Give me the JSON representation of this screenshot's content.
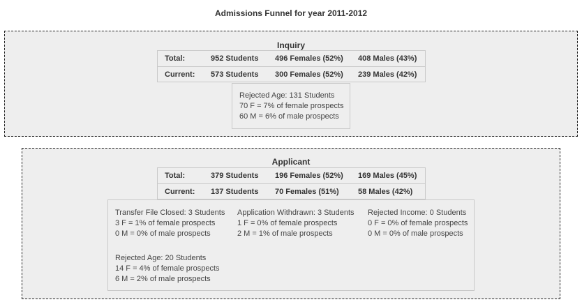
{
  "page_title": "Admissions Funnel for year 2011-2012",
  "inquiry": {
    "title": "Inquiry",
    "total": {
      "label": "Total:",
      "students": "952 Students",
      "females": "496 Females (52%)",
      "males": "408 Males (43%)"
    },
    "current": {
      "label": "Current:",
      "students": "573 Students",
      "females": "300 Females (52%)",
      "males": "239 Males (42%)"
    },
    "details": [
      {
        "heading": "Rejected Age: 131 Students",
        "female_line": "70 F = 7% of female prospects",
        "male_line": "60 M = 6% of male prospects"
      }
    ]
  },
  "applicant": {
    "title": "Applicant",
    "total": {
      "label": "Total:",
      "students": "379 Students",
      "females": "196 Females (52%)",
      "males": "169 Males (45%)"
    },
    "current": {
      "label": "Current:",
      "students": "137 Students",
      "females": "70 Females (51%)",
      "males": "58 Males (42%)"
    },
    "details": [
      {
        "heading": "Transfer File Closed: 3 Students",
        "female_line": "3 F = 1% of female prospects",
        "male_line": "0 M = 0% of male prospects"
      },
      {
        "heading": "Application Withdrawn: 3 Students",
        "female_line": "1 F = 0% of female prospects",
        "male_line": "2 M = 1% of male prospects"
      },
      {
        "heading": "Rejected Income: 0 Students",
        "female_line": "0 F = 0% of female prospects",
        "male_line": "0 M = 0% of male prospects"
      },
      {
        "heading": "Rejected Age: 20 Students",
        "female_line": "14 F = 4% of female prospects",
        "male_line": "6 M = 2% of male prospects"
      }
    ]
  }
}
